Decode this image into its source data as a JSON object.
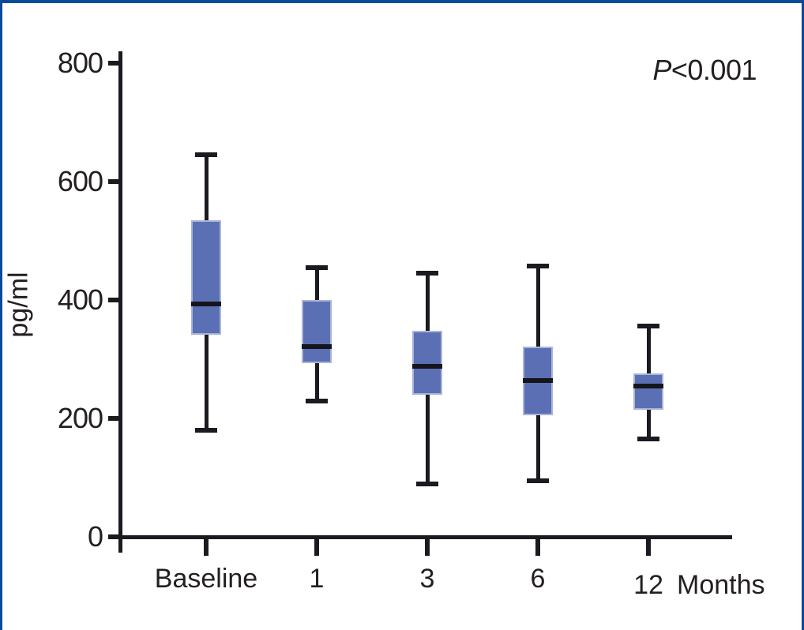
{
  "chart_data": {
    "type": "boxplot",
    "ylabel": "pg/ml",
    "xlabel_suffix": "Months",
    "annotation": {
      "p_symbol": "P",
      "p_value": "<0.001"
    },
    "ylim": [
      0,
      800
    ],
    "yticks": [
      0,
      200,
      400,
      600,
      800
    ],
    "categories": [
      "Baseline",
      "1",
      "3",
      "6",
      "12"
    ],
    "boxes": [
      {
        "category": "Baseline",
        "whisker_low": 180,
        "q1": 342,
        "median": 393,
        "q3": 535,
        "whisker_high": 645
      },
      {
        "category": "1",
        "whisker_low": 230,
        "q1": 293,
        "median": 322,
        "q3": 400,
        "whisker_high": 455
      },
      {
        "category": "3",
        "whisker_low": 90,
        "q1": 240,
        "median": 288,
        "q3": 348,
        "whisker_high": 445
      },
      {
        "category": "6",
        "whisker_low": 95,
        "q1": 205,
        "median": 264,
        "q3": 322,
        "whisker_high": 457
      },
      {
        "category": "12",
        "whisker_low": 165,
        "q1": 215,
        "median": 255,
        "q3": 276,
        "whisker_high": 356
      }
    ],
    "colors": {
      "box_fill": "#5b70b4",
      "box_edge": "#aab4da",
      "line": "#1a1a20",
      "frame": "#0b4a9b",
      "text": "#231f20"
    },
    "layout_hints": {
      "grid": false,
      "legend": "none",
      "annotation_position": "top-right"
    }
  }
}
